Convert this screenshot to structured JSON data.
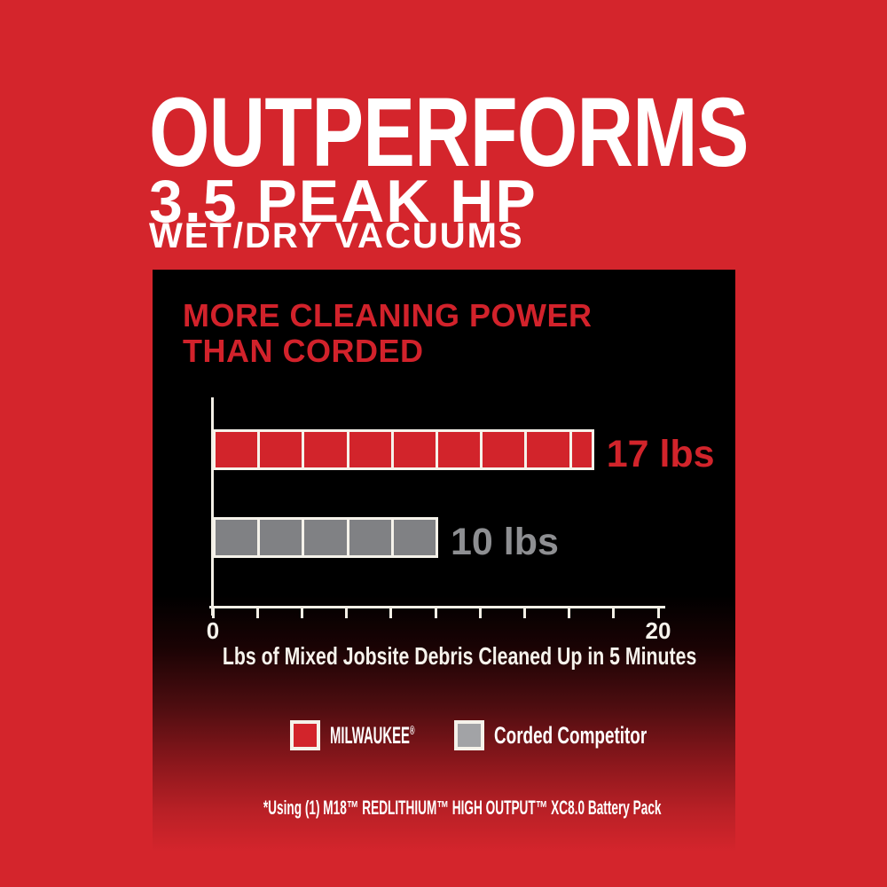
{
  "headline": {
    "line1": "OUTPERFORMS",
    "line2": "3.5 PEAK HP",
    "line3": "WET/DRY VACUUMS"
  },
  "footnote": "*Using (1) M18™ REDLITHIUM™ HIGH OUTPUT™ XC8.0 Battery Pack",
  "colors": {
    "background_red": "#d4252c",
    "panel_black": "#000000",
    "title_red": "#d2222b",
    "milwaukee_bar_red": "#d2242b",
    "competitor_bar_gray": "#808184",
    "competitor_label_gray": "#8e8f92",
    "legend_gray_swatch": "#a2a3a6",
    "axis_white": "#f3efe6",
    "text_white": "#ffffff"
  },
  "chart_data": {
    "type": "bar",
    "orientation": "horizontal",
    "title": "MORE CLEANING POWER\nTHAN CORDED",
    "xlabel": "Lbs of Mixed Jobsite Debris Cleaned Up in 5 Minutes",
    "xlim": [
      0,
      20
    ],
    "tick_step": 2,
    "tick_label_min": "0",
    "tick_label_max": "20",
    "segment_size_lbs": 2,
    "grid": false,
    "legend_position": "below",
    "bars": [
      {
        "name": "MILWAUKEE®",
        "value": 17,
        "label": "17 lbs",
        "color": "#d2242b",
        "label_color": "#d2242b"
      },
      {
        "name": "Corded Competitor",
        "value": 10,
        "label": "10 lbs",
        "color": "#808184",
        "label_color": "#8e8f92"
      }
    ],
    "legend": [
      {
        "label": "MILWAUKEE",
        "suffix": "®",
        "swatch_color": "#d2242b"
      },
      {
        "label": "Corded Competitor",
        "suffix": "",
        "swatch_color": "#a2a3a6"
      }
    ]
  }
}
